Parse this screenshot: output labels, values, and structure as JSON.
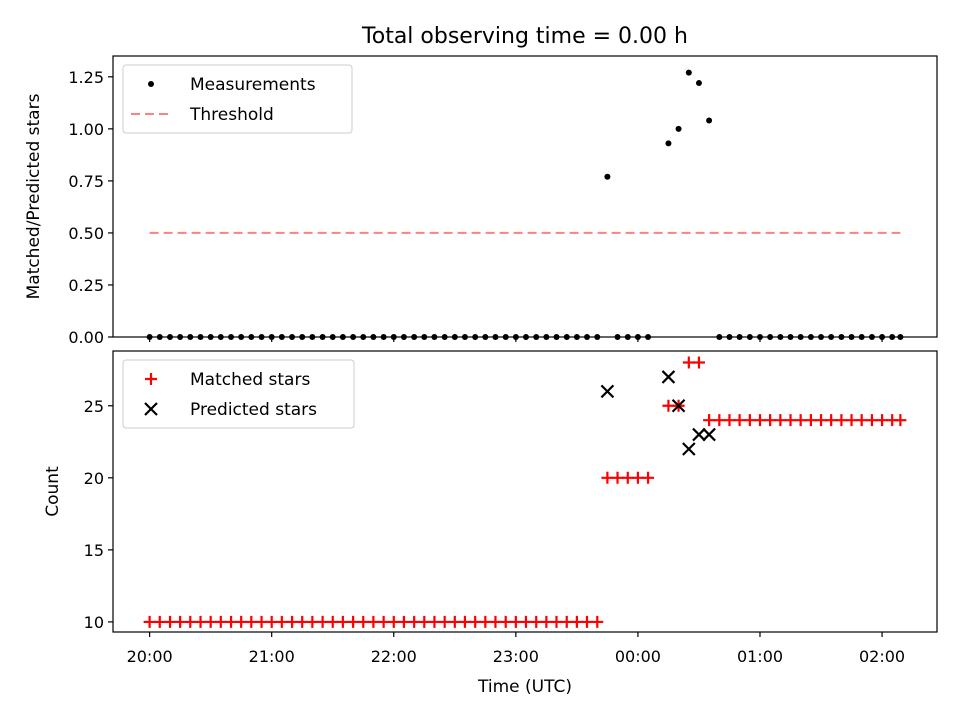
{
  "chart_data": {
    "title": "Total observing time = 0.00 h",
    "xlabel": "Time (UTC)",
    "x_ticks": [
      "20:00",
      "21:00",
      "22:00",
      "23:00",
      "00:00",
      "01:00",
      "02:00"
    ],
    "panels": [
      {
        "type": "scatter",
        "ylabel": "Matched/Predicted stars",
        "ylim": [
          0,
          1.35
        ],
        "y_ticks": [
          "0.00",
          "0.25",
          "0.50",
          "0.75",
          "1.00",
          "1.25"
        ],
        "legend": {
          "placement": "upper-left"
        },
        "series": [
          {
            "name": "Measurements",
            "marker": "dot",
            "color": "#000000",
            "x": [
              "20:00",
              "20:05",
              "20:10",
              "20:15",
              "20:20",
              "20:25",
              "20:30",
              "20:35",
              "20:40",
              "20:45",
              "20:50",
              "20:55",
              "21:00",
              "21:05",
              "21:10",
              "21:15",
              "21:20",
              "21:25",
              "21:30",
              "21:35",
              "21:40",
              "21:45",
              "21:50",
              "21:55",
              "22:00",
              "22:05",
              "22:10",
              "22:15",
              "22:20",
              "22:25",
              "22:30",
              "22:35",
              "22:40",
              "22:45",
              "22:50",
              "22:55",
              "23:00",
              "23:05",
              "23:10",
              "23:15",
              "23:20",
              "23:25",
              "23:30",
              "23:35",
              "23:40",
              "23:45",
              "23:50",
              "23:55",
              "00:00",
              "00:05",
              "00:10",
              "00:15",
              "00:20",
              "00:25",
              "00:30",
              "00:35",
              "00:40",
              "00:45",
              "00:50",
              "00:55",
              "01:00",
              "01:05",
              "01:10",
              "01:15",
              "01:20",
              "01:25",
              "01:30",
              "01:35",
              "01:40",
              "01:45",
              "01:50",
              "01:55",
              "02:00",
              "02:05"
            ],
            "y": [
              0,
              0,
              0,
              0,
              0,
              0,
              0,
              0,
              0,
              0,
              0,
              0,
              0,
              0,
              0,
              0,
              0,
              0,
              0,
              0,
              0,
              0,
              0,
              0,
              0,
              0,
              0,
              0,
              0,
              0,
              0,
              0,
              0,
              0,
              0,
              0,
              0,
              0,
              0,
              0,
              0,
              0,
              0,
              0,
              0,
              0.77,
              0,
              0,
              0,
              0,
              0.93,
              1.0,
              1.27,
              1.22,
              1.04,
              0,
              0,
              0,
              0,
              0,
              0,
              0,
              0,
              0,
              0,
              0,
              0,
              0,
              0,
              0,
              0,
              0,
              0,
              0
            ],
            "x_order_note": "",
            "x_hours": [
              20.0,
              20.083,
              20.167,
              20.25,
              20.333,
              20.417,
              20.5,
              20.583,
              20.667,
              20.75,
              20.833,
              20.917,
              21.0,
              21.083,
              21.167,
              21.25,
              21.333,
              21.417,
              21.5,
              21.583,
              21.667,
              21.75,
              21.833,
              21.917,
              22.0,
              22.083,
              22.167,
              22.25,
              22.333,
              22.417,
              22.5,
              22.583,
              22.667,
              22.75,
              22.833,
              22.917,
              23.0,
              23.083,
              23.167,
              23.25,
              23.333,
              23.417,
              23.5,
              23.583,
              23.667,
              23.75,
              23.833,
              23.917,
              24.0,
              24.083,
              24.25,
              24.333,
              24.417,
              24.5,
              24.583,
              24.667,
              24.75,
              24.833,
              24.917,
              25.0,
              25.083,
              25.167,
              25.25,
              25.333,
              25.417,
              25.5,
              25.583,
              25.667,
              25.75,
              25.833,
              25.917,
              26.0,
              26.083,
              26.15
            ]
          },
          {
            "name": "Threshold",
            "marker": "dashed-line",
            "color": "#ff8080",
            "x": [
              "20:00",
              "02:09"
            ],
            "y": [
              0.5,
              0.5
            ]
          }
        ]
      },
      {
        "type": "scatter",
        "ylabel": "Count",
        "ylim": [
          9.3,
          28.8
        ],
        "y_ticks": [
          "10",
          "15",
          "20",
          "25"
        ],
        "legend": {
          "placement": "upper-left"
        },
        "series": [
          {
            "name": "Matched stars",
            "marker": "plus",
            "color": "#ff0000",
            "x_hours": [
              20.0,
              20.083,
              20.167,
              20.25,
              20.333,
              20.417,
              20.5,
              20.583,
              20.667,
              20.75,
              20.833,
              20.917,
              21.0,
              21.083,
              21.167,
              21.25,
              21.333,
              21.417,
              21.5,
              21.583,
              21.667,
              21.75,
              21.833,
              21.917,
              22.0,
              22.083,
              22.167,
              22.25,
              22.333,
              22.417,
              22.5,
              22.583,
              22.667,
              22.75,
              22.833,
              22.917,
              23.0,
              23.083,
              23.167,
              23.25,
              23.333,
              23.417,
              23.5,
              23.583,
              23.667,
              23.75,
              23.833,
              23.917,
              24.0,
              24.083,
              24.25,
              24.333,
              24.417,
              24.5,
              24.583,
              24.667,
              24.75,
              24.833,
              24.917,
              25.0,
              25.083,
              25.167,
              25.25,
              25.333,
              25.417,
              25.5,
              25.583,
              25.667,
              25.75,
              25.833,
              25.917,
              26.0,
              26.083,
              26.15
            ],
            "y": [
              10,
              10,
              10,
              10,
              10,
              10,
              10,
              10,
              10,
              10,
              10,
              10,
              10,
              10,
              10,
              10,
              10,
              10,
              10,
              10,
              10,
              10,
              10,
              10,
              10,
              10,
              10,
              10,
              10,
              10,
              10,
              10,
              10,
              10,
              10,
              10,
              10,
              10,
              10,
              10,
              10,
              10,
              10,
              10,
              10,
              20,
              20,
              20,
              20,
              20,
              25,
              25,
              28,
              28,
              24,
              24,
              24,
              24,
              24,
              24,
              24,
              24,
              24,
              24,
              24,
              24,
              24,
              24,
              24,
              24,
              24,
              24,
              24,
              24
            ]
          },
          {
            "name": "Predicted stars",
            "marker": "x",
            "color": "#000000",
            "x_hours": [
              23.75,
              24.25,
              24.333,
              24.417,
              24.5,
              24.583
            ],
            "y": [
              26,
              27,
              25,
              22,
              23,
              23
            ]
          }
        ]
      }
    ]
  }
}
